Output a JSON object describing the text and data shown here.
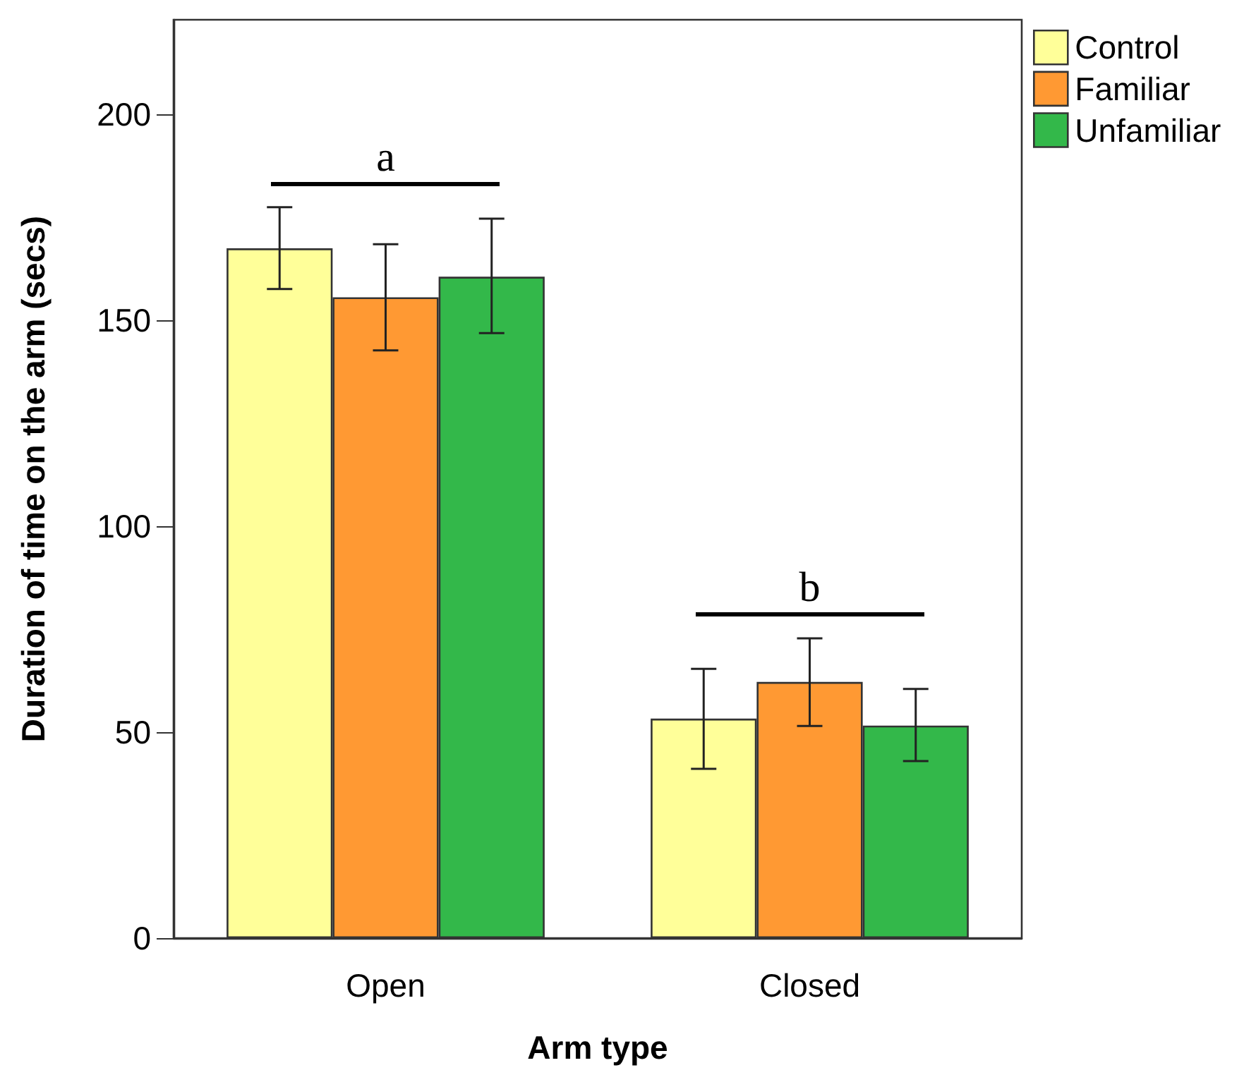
{
  "chart_data": {
    "type": "bar",
    "xlabel": "Arm type",
    "ylabel": "Duration of time on the arm (secs)",
    "categories": [
      "Open",
      "Closed"
    ],
    "series": [
      {
        "name": "Control",
        "color": "#ffff99",
        "values": [
          167.5,
          53.3
        ],
        "errors": [
          [
            157.6,
            177.5
          ],
          [
            41.1,
            65.4
          ]
        ]
      },
      {
        "name": "Familiar",
        "color": "#ff9933",
        "values": [
          155.6,
          62.2
        ],
        "errors": [
          [
            142.7,
            168.5
          ],
          [
            51.5,
            72.8
          ]
        ]
      },
      {
        "name": "Unfamiliar",
        "color": "#33b84a",
        "values": [
          160.6,
          51.6
        ],
        "errors": [
          [
            146.9,
            174.7
          ],
          [
            43.0,
            60.5
          ]
        ]
      }
    ],
    "ylim": [
      0,
      223
    ],
    "yticks": [
      0,
      50,
      100,
      150,
      200
    ],
    "grid": false,
    "legend": "top right",
    "annotations": [
      "a",
      "b"
    ]
  }
}
